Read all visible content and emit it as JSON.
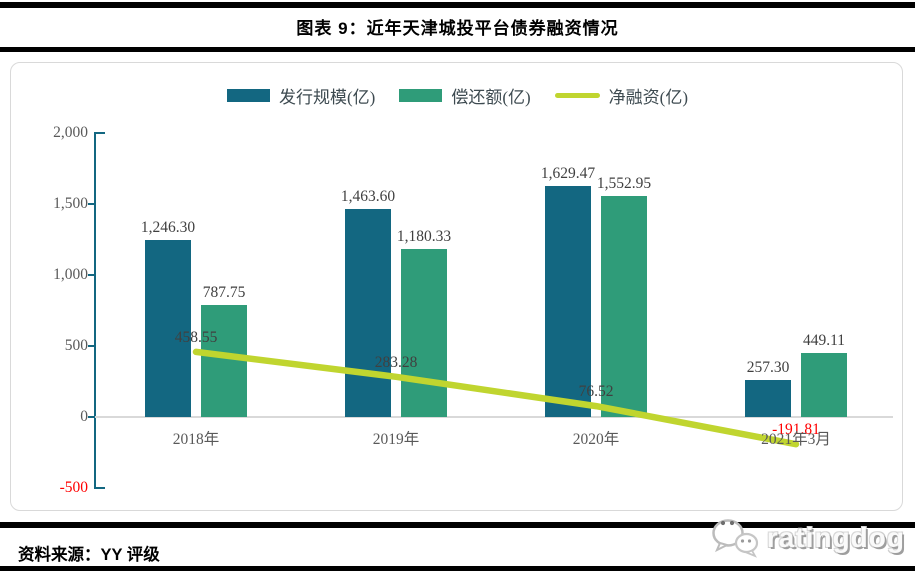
{
  "title": "图表 9：近年天津城投平台债券融资情况",
  "source": "资料来源：YY 评级",
  "watermark": {
    "brand": "ratingdog",
    "icon": "wechat-bubbles-icon"
  },
  "colors": {
    "issue_bar": "#136781",
    "repay_bar": "#2F9C79",
    "net_line": "#C0D52F",
    "axis": "#136781",
    "zero_gridline": "#D9D9D9",
    "tick_label": "#595959",
    "value_label": "#404040",
    "negative_label": "#FF0000",
    "rule": "#000000",
    "chart_border": "#D9D9D9"
  },
  "chart_data": {
    "type": "bar",
    "title": "图表 9：近年天津城投平台债券融资情况",
    "categories": [
      "2018年",
      "2019年",
      "2020年",
      "2021年3月"
    ],
    "series": [
      {
        "name": "发行规模(亿)",
        "type": "bar",
        "color": "#136781",
        "values": [
          1246.3,
          1463.6,
          1629.47,
          257.3
        ],
        "labels": [
          "1,246.30",
          "1,463.60",
          "1,629.47",
          "257.30"
        ]
      },
      {
        "name": "偿还额(亿)",
        "type": "bar",
        "color": "#2F9C79",
        "values": [
          787.75,
          1180.33,
          1552.95,
          449.11
        ],
        "labels": [
          "787.75",
          "1,180.33",
          "1,552.95",
          "449.11"
        ]
      },
      {
        "name": "净融资(亿)",
        "type": "line",
        "color": "#C0D52F",
        "values": [
          458.55,
          283.28,
          76.52,
          -191.81
        ],
        "labels": [
          "458.55",
          "283.28",
          "76.52",
          "-191.81"
        ]
      }
    ],
    "ylim": [
      -500,
      2000
    ],
    "ytick_values": [
      2000,
      1500,
      1000,
      500,
      0,
      -500
    ],
    "ytick_labels": [
      "2,000",
      "1,500",
      "1,000",
      "500",
      "0",
      "-500"
    ],
    "grid": "zero-line-only",
    "legend_position": "top"
  }
}
